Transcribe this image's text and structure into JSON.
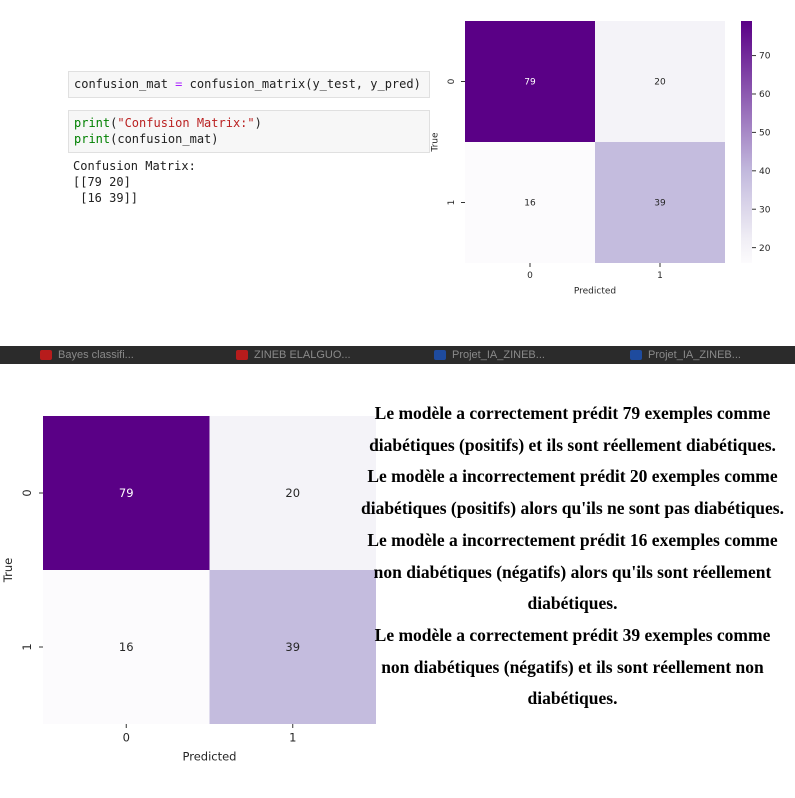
{
  "notebook": {
    "cell1": {
      "var": "confusion_mat",
      "op": "=",
      "call": "confusion_matrix(y_test, y_pred)"
    },
    "cell2": {
      "line1_fn": "print(",
      "line1_str": "\"Confusion Matrix:\"",
      "line1_end": ")",
      "line2_fn": "print",
      "line2_rest": "(confusion_mat)"
    },
    "output": {
      "line1": "Confusion Matrix:",
      "line2": "[[79 20]",
      "line3": " [16 39]]"
    }
  },
  "colors": {
    "dark": "#5a0086",
    "light_a": "#f0eef5",
    "light_b": "#fbf9fc",
    "mid": "#c2b9dd"
  },
  "chart_data": [
    {
      "type": "heatmap",
      "xlabel": "Predicted",
      "ylabel": "True",
      "x_ticks": [
        "0",
        "1"
      ],
      "y_ticks": [
        "0",
        "1"
      ],
      "values": [
        [
          79,
          20
        ],
        [
          16,
          39
        ]
      ],
      "colorbar": {
        "ticks": [
          "70",
          "60",
          "50",
          "40",
          "30",
          "20"
        ],
        "range": [
          16,
          79
        ]
      }
    },
    {
      "type": "heatmap",
      "xlabel": "Predicted",
      "ylabel": "True",
      "x_ticks": [
        "0",
        "1"
      ],
      "y_ticks": [
        "0",
        "1"
      ],
      "values": [
        [
          79,
          20
        ],
        [
          16,
          39
        ]
      ]
    }
  ],
  "taskbar": {
    "items": [
      "Bayes classifi...",
      "ZINEB ELALGUO...",
      "Projet_IA_ZINEB...",
      "Projet_IA_ZINEB..."
    ]
  },
  "explanation": {
    "p1": "Le modèle a correctement prédit 79 exemples comme diabétiques (positifs) et ils sont réellement diabétiques.",
    "p2": "Le modèle a incorrectement prédit 20 exemples comme diabétiques (positifs) alors qu'ils ne sont pas diabétiques.",
    "p3": "Le modèle a incorrectement prédit 16 exemples comme non diabétiques (négatifs) alors qu'ils sont réellement diabétiques.",
    "p4": "Le modèle a correctement prédit 39 exemples comme non diabétiques (négatifs) et ils sont réellement non diabétiques."
  }
}
